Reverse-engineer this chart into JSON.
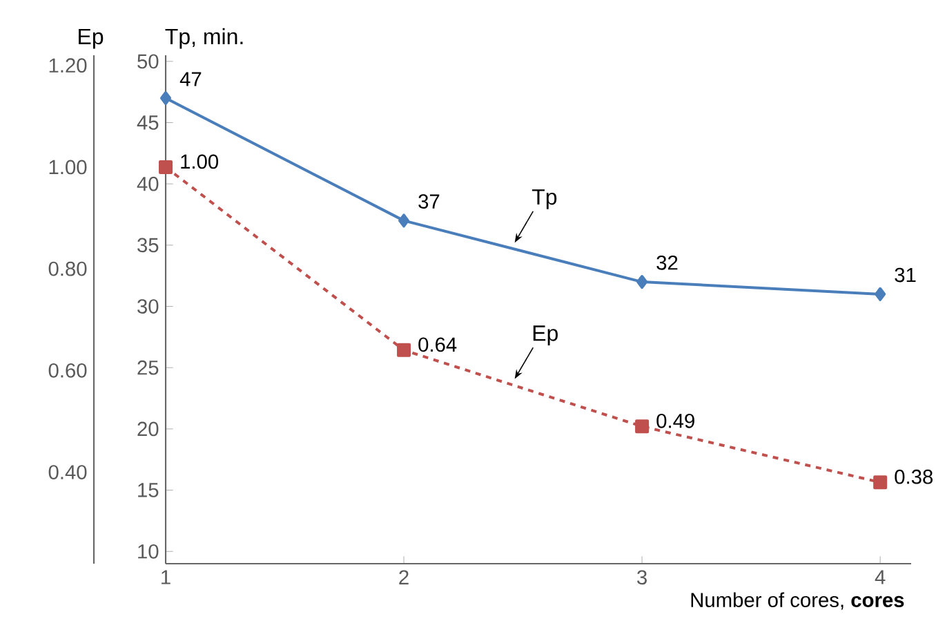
{
  "chart_data": {
    "type": "line",
    "xlabel": "Number of cores, **cores**",
    "ylabel": "Tp, min.",
    "y2label": "Ep",
    "x": [
      1,
      2,
      3,
      4
    ],
    "xlim": [
      1,
      4.13
    ],
    "xticks": [
      1,
      2,
      3,
      4
    ],
    "ylim": [
      9,
      50.5
    ],
    "yticks": [
      10,
      15,
      20,
      25,
      30,
      35,
      40,
      45,
      50
    ],
    "y2lim": [
      0.22,
      1.22
    ],
    "y2ticks": [
      {
        "value": 0.4,
        "label": "0.40"
      },
      {
        "value": 0.6,
        "label": "0.60"
      },
      {
        "value": 0.8,
        "label": "0.80"
      },
      {
        "value": 1.0,
        "label": "1.00"
      },
      {
        "value": 1.2,
        "label": "1.20"
      }
    ],
    "series": [
      {
        "name": "Tp",
        "color": "#4a7ebb",
        "values": [
          47,
          37,
          32,
          31
        ],
        "value_labels": [
          "47",
          "37",
          "32",
          "31"
        ],
        "marker": "diamond",
        "line_style": "solid"
      },
      {
        "name": "Ep",
        "color": "#c0504d",
        "axis": "y2",
        "values": [
          1.0,
          0.64,
          0.49,
          0.38
        ],
        "value_labels": [
          "1.00",
          "0.64",
          "0.49",
          "0.38"
        ],
        "marker": "square",
        "line_style": "dashed"
      }
    ]
  }
}
